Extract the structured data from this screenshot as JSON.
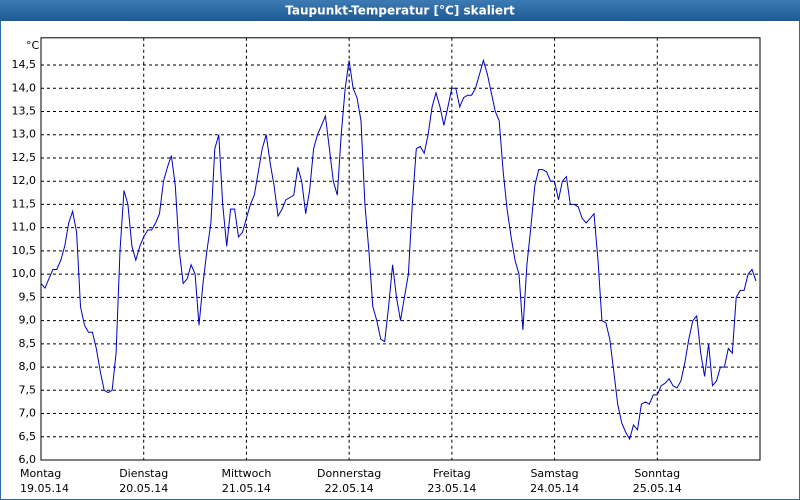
{
  "chart_data": {
    "type": "line",
    "title": "Taupunkt-Temperatur [°C] skaliert",
    "y_unit": "°C",
    "x_labels": [
      {
        "day": "Montag",
        "date": "19.05.14"
      },
      {
        "day": "Dienstag",
        "date": "20.05.14"
      },
      {
        "day": "Mittwoch",
        "date": "21.05.14"
      },
      {
        "day": "Donnerstag",
        "date": "22.05.14"
      },
      {
        "day": "Freitag",
        "date": "23.05.14"
      },
      {
        "day": "Samstag",
        "date": "24.05.14"
      },
      {
        "day": "Sonntag",
        "date": "25.05.14"
      }
    ],
    "ylim": [
      6,
      15
    ],
    "yticks": [
      {
        "value": 6,
        "label": "6,0"
      },
      {
        "value": 6.5,
        "label": "6,5"
      },
      {
        "value": 7,
        "label": "7,0"
      },
      {
        "value": 7.5,
        "label": "7,5"
      },
      {
        "value": 8,
        "label": "8,0"
      },
      {
        "value": 8.5,
        "label": "8,5"
      },
      {
        "value": 9,
        "label": "9,0"
      },
      {
        "value": 9.5,
        "label": "9,5"
      },
      {
        "value": 10,
        "label": "10,0"
      },
      {
        "value": 10.5,
        "label": "10,5"
      },
      {
        "value": 11,
        "label": "11,0"
      },
      {
        "value": 11.5,
        "label": "11,5"
      },
      {
        "value": 12,
        "label": "12,0"
      },
      {
        "value": 12.5,
        "label": "12,5"
      },
      {
        "value": 13,
        "label": "13,0"
      },
      {
        "value": 13.5,
        "label": "13,5"
      },
      {
        "value": 14,
        "label": "14,0"
      },
      {
        "value": 14.5,
        "label": "14,5"
      }
    ],
    "grid": true,
    "series": [
      {
        "color": "#0000c0",
        "values": [
          9.8,
          9.7,
          9.9,
          10.1,
          10.1,
          10.3,
          10.6,
          11.1,
          11.35,
          10.9,
          9.3,
          8.9,
          8.75,
          8.75,
          8.4,
          7.9,
          7.5,
          7.45,
          7.5,
          8.3,
          10.5,
          11.8,
          11.5,
          10.6,
          10.3,
          10.6,
          10.8,
          10.95,
          10.95,
          11.1,
          11.3,
          12.0,
          12.3,
          12.55,
          11.9,
          10.5,
          9.8,
          9.9,
          10.2,
          10.0,
          8.9,
          9.8,
          10.5,
          11.1,
          12.7,
          13.0,
          11.5,
          10.6,
          11.4,
          11.4,
          10.8,
          10.9,
          11.2,
          11.5,
          11.7,
          12.2,
          12.7,
          13.0,
          12.4,
          11.9,
          11.25,
          11.4,
          11.6,
          11.65,
          11.7,
          12.3,
          12.0,
          11.3,
          11.8,
          12.7,
          13.0,
          13.2,
          13.4,
          12.7,
          12.0,
          11.7,
          13.0,
          14.0,
          14.6,
          14.0,
          13.8,
          13.3,
          11.5,
          10.5,
          9.3,
          9.0,
          8.6,
          8.55,
          9.3,
          10.2,
          9.5,
          9.0,
          9.5,
          10.0,
          11.5,
          12.7,
          12.75,
          12.6,
          13.0,
          13.6,
          13.9,
          13.6,
          13.2,
          13.6,
          14.0,
          14.0,
          13.6,
          13.8,
          13.85,
          13.85,
          14.0,
          14.3,
          14.6,
          14.3,
          13.9,
          13.5,
          13.3,
          12.2,
          11.4,
          10.8,
          10.3,
          10.0,
          8.8,
          10.2,
          11.0,
          11.9,
          12.25,
          12.25,
          12.2,
          12.0,
          12.0,
          11.6,
          12.0,
          12.1,
          11.5,
          11.5,
          11.45,
          11.2,
          11.1,
          11.2,
          11.3,
          10.3,
          9.0,
          8.95,
          8.6,
          7.9,
          7.2,
          6.8,
          6.6,
          6.45,
          6.75,
          6.65,
          7.2,
          7.25,
          7.2,
          7.4,
          7.4,
          7.6,
          7.65,
          7.75,
          7.6,
          7.55,
          7.7,
          8.1,
          8.6,
          9.0,
          9.1,
          8.3,
          7.8,
          8.5,
          7.6,
          7.7,
          8.0,
          8.0,
          8.4,
          8.3,
          9.5,
          9.65,
          9.65,
          10.0,
          10.1,
          9.85
        ]
      }
    ]
  }
}
